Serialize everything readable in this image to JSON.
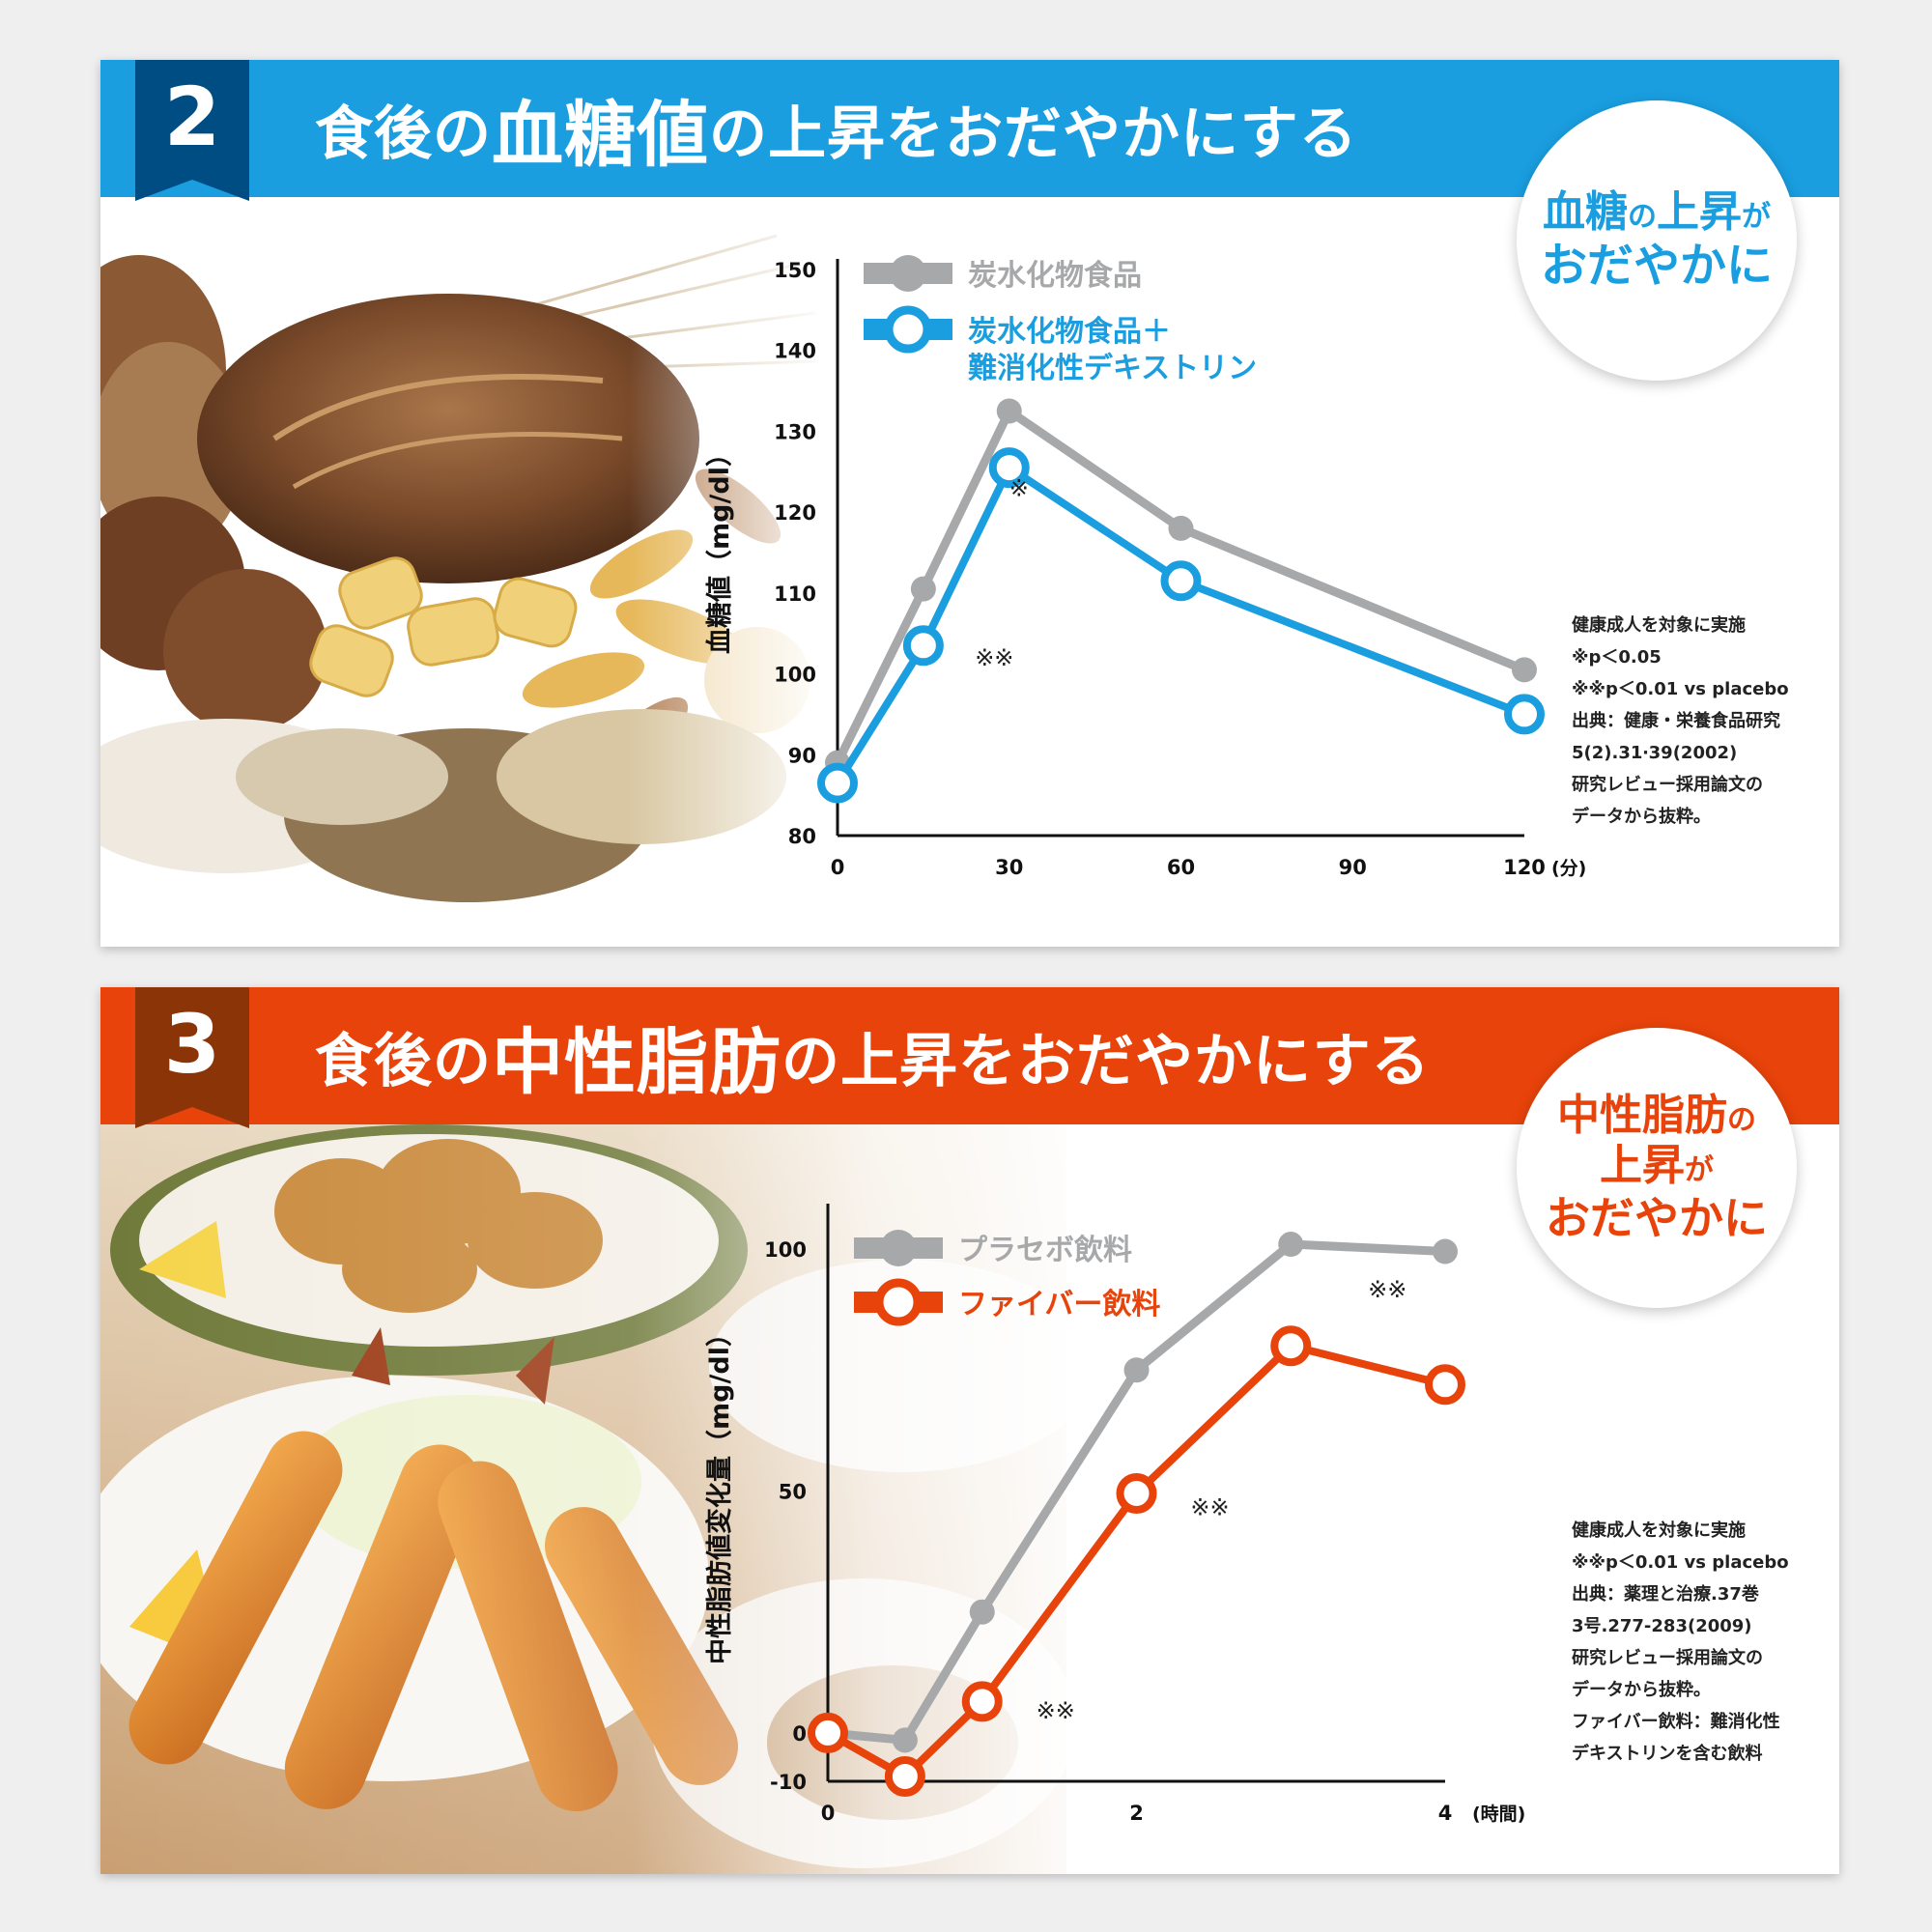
{
  "colors": {
    "blue": "#1a9ee0",
    "orange": "#e8430a",
    "gray": "#a7a8aa",
    "badge_blue": "#004d84",
    "badge_brown": "#8a3408"
  },
  "panel1": {
    "number": "2",
    "title_pre": "食後の",
    "title_big": "血糖値",
    "title_post": "の上昇をおだやかにする",
    "circle": {
      "line1_big": "血糖",
      "line1_small1": "の",
      "line1_big2": "上昇",
      "line1_small2": "が",
      "line2": "おだやかに"
    },
    "notes": [
      "健康成人を対象に実施",
      "※p＜0.05",
      "※※p＜0.01 vs placebo",
      "出典：健康・栄養食品研究",
      "5(2).31‧39(2002)",
      "研究レビュー採用論文の",
      "データから抜粋。"
    ]
  },
  "panel2": {
    "number": "3",
    "title_pre": "食後の",
    "title_big": "中性脂肪",
    "title_post": "の上昇をおだやかにする",
    "circle": {
      "line1_big": "中性脂肪",
      "line1_small": "の",
      "line2_big": "上昇",
      "line2_small": "が",
      "line3": "おだやかに"
    },
    "notes": [
      "健康成人を対象に実施",
      "※※p＜0.01 vs placebo",
      "出典：薬理と治療.37巻",
      "3号.277-283(2009)",
      "研究レビュー採用論文の",
      "データから抜粋。",
      "ファイバー飲料：難消化性",
      "デキストリンを含む飲料"
    ]
  },
  "chart_data": [
    {
      "type": "line",
      "ylabel": "血糖値（mg/dl）",
      "x_unit": "(分)",
      "xlim": [
        0,
        120
      ],
      "ylim": [
        80,
        150
      ],
      "x_ticks": [
        0,
        30,
        60,
        90,
        120
      ],
      "y_ticks": [
        80,
        90,
        100,
        110,
        120,
        130,
        140,
        150
      ],
      "grid": false,
      "legend_position": "top-left",
      "series": [
        {
          "name": "炭水化物食品",
          "color": "#a7a8aa",
          "x": [
            0,
            15,
            30,
            60,
            120
          ],
          "y": [
            89,
            110.5,
            132.5,
            118,
            100.5
          ]
        },
        {
          "name": "炭水化物食品＋\n難消化性デキストリン",
          "color": "#1a9ee0",
          "x": [
            0,
            15,
            30,
            60,
            120
          ],
          "y": [
            86.5,
            103.5,
            125.5,
            111.5,
            95
          ]
        }
      ],
      "annotations": [
        {
          "text": "※",
          "x": 30,
          "y": 122
        },
        {
          "text": "※※",
          "x": 24,
          "y": 101
        }
      ]
    },
    {
      "type": "line",
      "ylabel": "中性脂肪値変化量（mg/dl）",
      "x_unit": "(時間)",
      "xlim": [
        0,
        4
      ],
      "ylim": [
        -10,
        105
      ],
      "x_ticks": [
        0,
        2,
        4
      ],
      "y_ticks": [
        -10,
        0,
        50,
        100
      ],
      "grid": false,
      "legend_position": "top-left",
      "series": [
        {
          "name": "プラセボ飲料",
          "color": "#a7a8aa",
          "x": [
            0,
            0.5,
            1,
            2,
            3,
            4
          ],
          "y": [
            0,
            -1.5,
            25,
            75,
            101,
            99.5
          ]
        },
        {
          "name": "ファイバー飲料",
          "color": "#e8430a",
          "x": [
            0,
            0.5,
            1,
            2,
            3,
            4
          ],
          "y": [
            0,
            -9,
            6.5,
            49.5,
            80,
            72
          ]
        }
      ],
      "annotations": [
        {
          "text": "※※",
          "x": 1.35,
          "y": 3
        },
        {
          "text": "※※",
          "x": 2.35,
          "y": 45
        },
        {
          "text": "※※",
          "x": 3.5,
          "y": 90
        }
      ]
    }
  ]
}
